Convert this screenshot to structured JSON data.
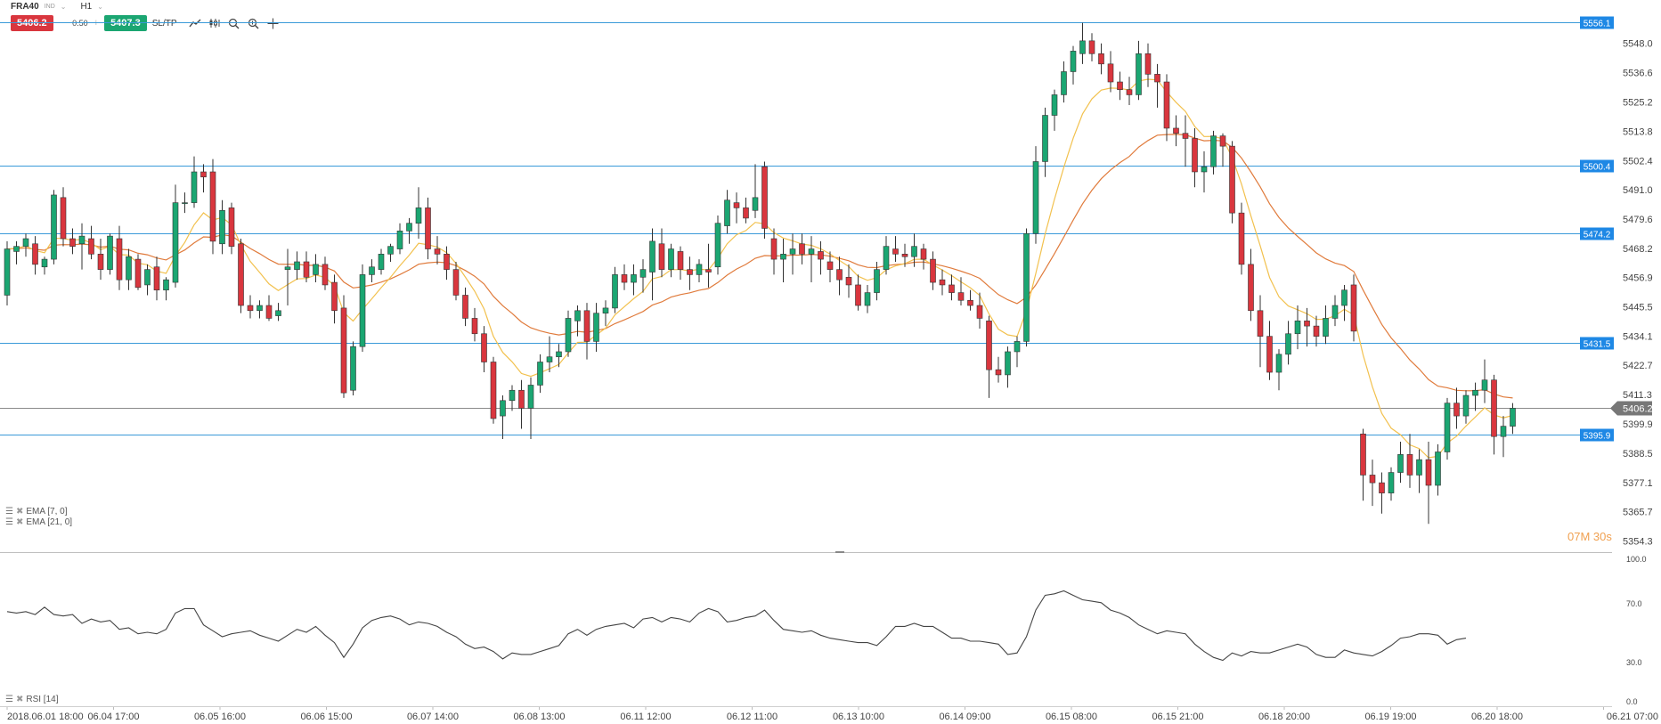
{
  "toolbar": {
    "symbol": "FRA40",
    "symbol_type": "IND",
    "timeframe": "H1",
    "sell_price": "5406.2",
    "spread": "0.50",
    "buy_price": "5407.3",
    "sltp_label": "SL/TP",
    "icons": [
      "line-chart-icon",
      "candles-icon",
      "zoom-out-icon",
      "zoom-in-icon",
      "crosshair-icon"
    ]
  },
  "indicators": {
    "ema_fast": "EMA [7, 0]",
    "ema_slow": "EMA [21, 0]",
    "rsi": "RSI [14]"
  },
  "countdown": "07M 30s",
  "price_axis": {
    "ticks": [
      "5548.0",
      "5536.6",
      "5525.2",
      "5513.8",
      "5502.4",
      "5491.0",
      "5479.6",
      "5468.2",
      "5456.9",
      "5445.5",
      "5434.1",
      "5422.7",
      "5411.3",
      "5399.9",
      "5388.5",
      "5377.1",
      "5365.7",
      "5354.3"
    ],
    "level_labels": [
      "5556.1",
      "5500.4",
      "5474.2",
      "5431.5",
      "5395.9"
    ],
    "current_price": "5406.2"
  },
  "rsi_axis": {
    "ticks": [
      "100.0",
      "70.0",
      "30.0",
      "0.0"
    ]
  },
  "time_axis": {
    "labels": [
      "2018.06.01 18:00",
      "06.04 17:00",
      "06.05 16:00",
      "06.06 15:00",
      "06.07 14:00",
      "06.08 13:00",
      "06.11 12:00",
      "06.12 11:00",
      "06.13 10:00",
      "06.14 09:00",
      "06.15 08:00",
      "06.15 21:00",
      "06.18 20:00",
      "06.19 19:00",
      "06.20 18:00",
      "06.21 07:00"
    ]
  },
  "colors": {
    "up": "#1ba672",
    "down": "#d9363e",
    "level_line": "#3a9ad9",
    "level_label_bg": "#1e88e5",
    "ema_fast": "#f2c14e",
    "ema_slow": "#e07b3c",
    "current_label_bg": "#777777",
    "countdown": "#f0a050"
  },
  "chart_data": {
    "type": "candlestick",
    "price_range": [
      5350,
      5559
    ],
    "levels": [
      5556.1,
      5500.4,
      5474.2,
      5431.5,
      5395.9
    ],
    "current_price": 5406.2,
    "candles": [
      [
        5450,
        5471,
        5446,
        5468
      ],
      [
        5467,
        5471,
        5462,
        5469
      ],
      [
        5469,
        5474,
        5465,
        5472
      ],
      [
        5470,
        5473,
        5458,
        5462
      ],
      [
        5461,
        5465,
        5458,
        5464
      ],
      [
        5464,
        5491,
        5462,
        5489
      ],
      [
        5488,
        5492,
        5469,
        5472
      ],
      [
        5472,
        5476,
        5466,
        5469
      ],
      [
        5470,
        5478,
        5460,
        5473
      ],
      [
        5472,
        5477,
        5464,
        5466
      ],
      [
        5466,
        5472,
        5456,
        5460
      ],
      [
        5460,
        5474,
        5458,
        5473
      ],
      [
        5472,
        5477,
        5452,
        5456
      ],
      [
        5456,
        5468,
        5452,
        5465
      ],
      [
        5464,
        5466,
        5452,
        5453
      ],
      [
        5454,
        5462,
        5450,
        5460
      ],
      [
        5461,
        5465,
        5448,
        5452
      ],
      [
        5452,
        5457,
        5448,
        5456
      ],
      [
        5455,
        5493,
        5453,
        5486
      ],
      [
        5486,
        5490,
        5482,
        5486
      ],
      [
        5486,
        5504,
        5484,
        5498
      ],
      [
        5498,
        5501,
        5490,
        5496
      ],
      [
        5498,
        5503,
        5466,
        5471
      ],
      [
        5470,
        5487,
        5466,
        5483
      ],
      [
        5484,
        5486,
        5466,
        5469
      ],
      [
        5470,
        5472,
        5443,
        5446
      ],
      [
        5446,
        5450,
        5441,
        5444
      ],
      [
        5444,
        5448,
        5441,
        5446
      ],
      [
        5446,
        5450,
        5440,
        5441
      ],
      [
        5442,
        5447,
        5440,
        5444
      ],
      [
        5460,
        5468,
        5446,
        5461
      ],
      [
        5460,
        5467,
        5456,
        5463
      ],
      [
        5463,
        5467,
        5455,
        5457
      ],
      [
        5458,
        5466,
        5455,
        5462
      ],
      [
        5462,
        5465,
        5452,
        5454
      ],
      [
        5455,
        5458,
        5439,
        5444
      ],
      [
        5445,
        5450,
        5410,
        5412
      ],
      [
        5413,
        5432,
        5411,
        5430
      ],
      [
        5430,
        5462,
        5428,
        5458
      ],
      [
        5458,
        5464,
        5455,
        5461
      ],
      [
        5460,
        5468,
        5458,
        5466
      ],
      [
        5466,
        5470,
        5463,
        5469
      ],
      [
        5468,
        5478,
        5466,
        5475
      ],
      [
        5475,
        5480,
        5470,
        5478
      ],
      [
        5478,
        5492,
        5472,
        5484
      ],
      [
        5484,
        5488,
        5464,
        5468
      ],
      [
        5468,
        5473,
        5462,
        5466
      ],
      [
        5466,
        5469,
        5456,
        5460
      ],
      [
        5460,
        5463,
        5448,
        5450
      ],
      [
        5450,
        5453,
        5438,
        5441
      ],
      [
        5441,
        5445,
        5432,
        5435
      ],
      [
        5435,
        5438,
        5420,
        5424
      ],
      [
        5424,
        5426,
        5400,
        5402
      ],
      [
        5403,
        5411,
        5394,
        5409
      ],
      [
        5409,
        5415,
        5405,
        5413
      ],
      [
        5413,
        5417,
        5398,
        5406
      ],
      [
        5406,
        5418,
        5394,
        5415
      ],
      [
        5415,
        5427,
        5412,
        5424
      ],
      [
        5424,
        5434,
        5420,
        5426
      ],
      [
        5426,
        5431,
        5422,
        5428
      ],
      [
        5428,
        5444,
        5426,
        5441
      ],
      [
        5440,
        5446,
        5434,
        5444
      ],
      [
        5444,
        5447,
        5425,
        5432
      ],
      [
        5432,
        5447,
        5428,
        5443
      ],
      [
        5443,
        5448,
        5438,
        5445
      ],
      [
        5445,
        5461,
        5443,
        5458
      ],
      [
        5458,
        5462,
        5452,
        5455
      ],
      [
        5455,
        5462,
        5450,
        5458
      ],
      [
        5457,
        5464,
        5451,
        5460
      ],
      [
        5459,
        5476,
        5448,
        5471
      ],
      [
        5470,
        5476,
        5457,
        5460
      ],
      [
        5460,
        5470,
        5457,
        5468
      ],
      [
        5467,
        5469,
        5456,
        5460
      ],
      [
        5460,
        5465,
        5452,
        5458
      ],
      [
        5458,
        5464,
        5455,
        5462
      ],
      [
        5460,
        5470,
        5453,
        5459
      ],
      [
        5461,
        5481,
        5458,
        5478
      ],
      [
        5477,
        5491,
        5474,
        5487
      ],
      [
        5486,
        5490,
        5478,
        5484
      ],
      [
        5484,
        5488,
        5478,
        5480
      ],
      [
        5483,
        5501,
        5480,
        5488
      ],
      [
        5500,
        5502,
        5472,
        5476
      ],
      [
        5472,
        5476,
        5458,
        5464
      ],
      [
        5464,
        5472,
        5455,
        5466
      ],
      [
        5466,
        5474,
        5458,
        5468
      ],
      [
        5470,
        5474,
        5462,
        5466
      ],
      [
        5466,
        5473,
        5455,
        5468
      ],
      [
        5467,
        5471,
        5458,
        5464
      ],
      [
        5463,
        5467,
        5455,
        5460
      ],
      [
        5460,
        5465,
        5450,
        5456
      ],
      [
        5457,
        5462,
        5449,
        5454
      ],
      [
        5454,
        5458,
        5444,
        5446
      ],
      [
        5446,
        5454,
        5443,
        5451
      ],
      [
        5451,
        5463,
        5448,
        5460
      ],
      [
        5460,
        5473,
        5458,
        5469
      ],
      [
        5468,
        5473,
        5463,
        5466
      ],
      [
        5466,
        5470,
        5461,
        5465
      ],
      [
        5465,
        5474,
        5461,
        5469
      ],
      [
        5468,
        5470,
        5460,
        5464
      ],
      [
        5464,
        5467,
        5452,
        5455
      ],
      [
        5456,
        5460,
        5450,
        5454
      ],
      [
        5454,
        5458,
        5448,
        5451
      ],
      [
        5451,
        5457,
        5446,
        5448
      ],
      [
        5448,
        5452,
        5444,
        5446
      ],
      [
        5446,
        5451,
        5437,
        5441
      ],
      [
        5440,
        5442,
        5410,
        5421
      ],
      [
        5421,
        5426,
        5416,
        5419
      ],
      [
        5419,
        5430,
        5414,
        5428
      ],
      [
        5428,
        5434,
        5422,
        5432
      ],
      [
        5432,
        5476,
        5430,
        5474
      ],
      [
        5474,
        5508,
        5470,
        5502
      ],
      [
        5502,
        5523,
        5496,
        5520
      ],
      [
        5520,
        5530,
        5514,
        5528
      ],
      [
        5528,
        5541,
        5525,
        5537
      ],
      [
        5537,
        5547,
        5532,
        5545
      ],
      [
        5544,
        5556,
        5540,
        5549
      ],
      [
        5549,
        5552,
        5541,
        5544
      ],
      [
        5544,
        5548,
        5536,
        5540
      ],
      [
        5540,
        5545,
        5529,
        5533
      ],
      [
        5533,
        5537,
        5526,
        5530
      ],
      [
        5530,
        5535,
        5524,
        5528
      ],
      [
        5528,
        5549,
        5526,
        5544
      ],
      [
        5544,
        5548,
        5531,
        5536
      ],
      [
        5536,
        5540,
        5523,
        5533
      ],
      [
        5533,
        5536,
        5510,
        5515
      ],
      [
        5515,
        5520,
        5508,
        5513
      ],
      [
        5513,
        5520,
        5500,
        5511
      ],
      [
        5511,
        5515,
        5492,
        5498
      ],
      [
        5498,
        5506,
        5490,
        5500
      ],
      [
        5500,
        5514,
        5497,
        5512
      ],
      [
        5512,
        5513,
        5500,
        5508
      ],
      [
        5508,
        5510,
        5478,
        5482
      ],
      [
        5482,
        5486,
        5458,
        5462
      ],
      [
        5462,
        5468,
        5440,
        5444
      ],
      [
        5444,
        5450,
        5422,
        5434
      ],
      [
        5434,
        5440,
        5417,
        5420
      ],
      [
        5420,
        5429,
        5413,
        5427
      ],
      [
        5427,
        5440,
        5423,
        5435
      ],
      [
        5435,
        5446,
        5429,
        5440
      ],
      [
        5440,
        5445,
        5430,
        5438
      ],
      [
        5438,
        5442,
        5430,
        5434
      ],
      [
        5434,
        5446,
        5431,
        5441
      ],
      [
        5441,
        5450,
        5438,
        5446
      ],
      [
        5446,
        5454,
        5440,
        5452
      ],
      [
        5454,
        5458,
        5432,
        5436
      ],
      [
        5396,
        5398,
        5370,
        5380
      ],
      [
        5380,
        5386,
        5368,
        5377
      ],
      [
        5377,
        5381,
        5365,
        5373
      ],
      [
        5373,
        5383,
        5370,
        5381
      ],
      [
        5381,
        5393,
        5377,
        5388
      ],
      [
        5388,
        5396,
        5375,
        5380
      ],
      [
        5380,
        5390,
        5373,
        5386
      ],
      [
        5386,
        5393,
        5361,
        5376
      ],
      [
        5376,
        5392,
        5372,
        5389
      ],
      [
        5389,
        5410,
        5386,
        5408
      ],
      [
        5408,
        5414,
        5398,
        5403
      ],
      [
        5403,
        5413,
        5400,
        5411
      ],
      [
        5411,
        5416,
        5405,
        5413
      ],
      [
        5413,
        5425,
        5408,
        5417
      ],
      [
        5417,
        5419,
        5388,
        5395
      ],
      [
        5395,
        5403,
        5387,
        5399
      ],
      [
        5399,
        5408,
        5396,
        5406
      ]
    ],
    "rsi_range": [
      0,
      100
    ],
    "rsi": [
      64,
      63,
      64,
      62,
      67,
      62,
      61,
      62,
      56,
      59,
      57,
      58,
      52,
      53,
      49,
      50,
      49,
      52,
      63,
      66,
      66,
      55,
      51,
      47,
      49,
      50,
      51,
      48,
      46,
      44,
      48,
      52,
      50,
      54,
      48,
      43,
      33,
      42,
      53,
      58,
      60,
      61,
      59,
      55,
      57,
      56,
      54,
      50,
      47,
      42,
      39,
      40,
      37,
      32,
      36,
      35,
      35,
      37,
      39,
      41,
      49,
      52,
      48,
      52,
      54,
      55,
      56,
      53,
      59,
      60,
      57,
      60,
      59,
      57,
      63,
      66,
      64,
      57,
      58,
      60,
      61,
      65,
      58,
      52,
      51,
      50,
      51,
      48,
      46,
      45,
      44,
      43,
      43,
      41,
      47,
      54,
      54,
      56,
      54,
      54,
      50,
      46,
      46,
      44,
      44,
      43,
      42,
      35,
      36,
      47,
      65,
      75,
      76,
      78,
      75,
      72,
      71,
      70,
      65,
      63,
      60,
      55,
      52,
      49,
      51,
      50,
      49,
      42,
      37,
      33,
      31,
      36,
      34,
      37,
      36,
      36,
      38,
      40,
      42,
      40,
      35,
      33,
      33,
      38,
      36,
      35,
      34,
      37,
      41,
      46,
      47,
      49,
      49,
      48,
      42,
      45,
      46
    ],
    "ema_fast_period": 7,
    "ema_slow_period": 21,
    "time_labels": [
      "2018.06.01 18:00",
      "06.04 17:00",
      "06.05 16:00",
      "06.06 15:00",
      "06.07 14:00",
      "06.08 13:00",
      "06.11 12:00",
      "06.12 11:00",
      "06.13 10:00",
      "06.14 09:00",
      "06.15 08:00",
      "06.15 21:00",
      "06.18 20:00",
      "06.19 19:00",
      "06.20 18:00",
      "06.21 07:00"
    ]
  }
}
